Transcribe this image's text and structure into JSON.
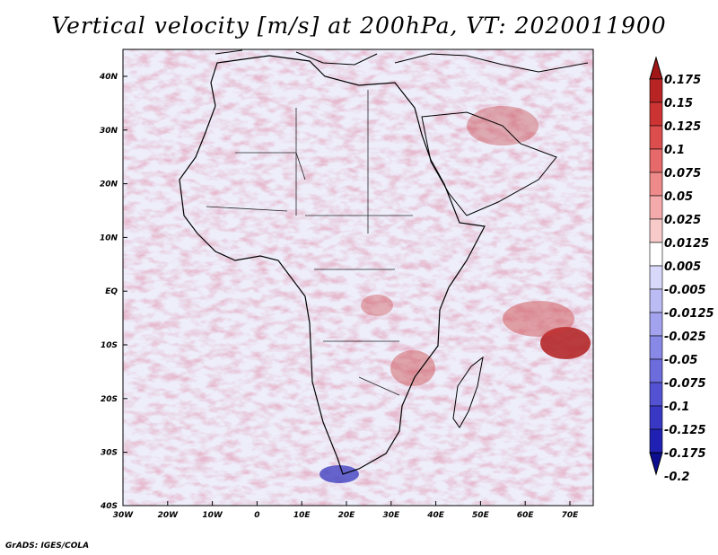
{
  "title": "Vertical velocity [m/s] at 200hPa, VT: 2020011900",
  "credit": "GrADS: IGES/COLA",
  "lat_labels": [
    "40N",
    "30N",
    "20N",
    "10N",
    "EQ",
    "10S",
    "20S",
    "30S",
    "40S"
  ],
  "lon_labels": [
    "30W",
    "20W",
    "10W",
    "0",
    "10E",
    "20E",
    "30E",
    "40E",
    "50E",
    "60E",
    "70E"
  ],
  "colorbar": {
    "labels": [
      "0.175",
      "0.15",
      "0.125",
      "0.1",
      "0.075",
      "0.05",
      "0.025",
      "0.0125",
      "0.005",
      "-0.005",
      "-0.0125",
      "-0.025",
      "-0.05",
      "-0.075",
      "-0.1",
      "-0.125",
      "-0.175",
      "-0.2"
    ],
    "colors": [
      "#a11616",
      "#b82424",
      "#cc3434",
      "#dc4e4e",
      "#e66a6a",
      "#ee8a8a",
      "#f4aaaa",
      "#f9caca",
      "#ffffff",
      "#d8d8fa",
      "#bcbcf4",
      "#a2a2ee",
      "#8888e6",
      "#6c6cdc",
      "#5252d2",
      "#3838c4",
      "#2020b2",
      "#0d0d90"
    ]
  }
}
